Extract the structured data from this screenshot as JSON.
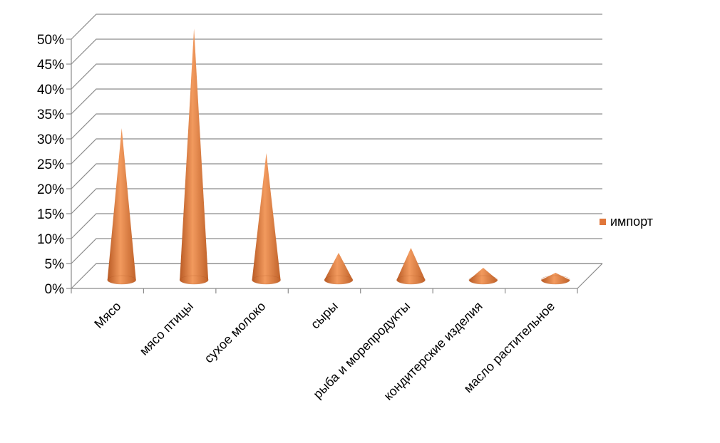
{
  "chart_data": {
    "type": "bar",
    "style": "3d-cone",
    "categories": [
      "Мясо",
      "мясо птицы",
      "сухое молоко",
      "сыры",
      "рыба и морепродукты",
      "кондитерские изделия",
      "масло растительное"
    ],
    "series": [
      {
        "name": "импорт",
        "values": [
          0.3,
          0.5,
          0.25,
          0.05,
          0.06,
          0.02,
          0.01
        ],
        "color": "#E0763A"
      }
    ],
    "ylim": [
      0,
      0.5
    ],
    "yticks": [
      "0%",
      "5%",
      "10%",
      "15%",
      "20%",
      "25%",
      "30%",
      "35%",
      "40%",
      "45%",
      "50%"
    ],
    "grid": true,
    "legend_position": "right"
  }
}
